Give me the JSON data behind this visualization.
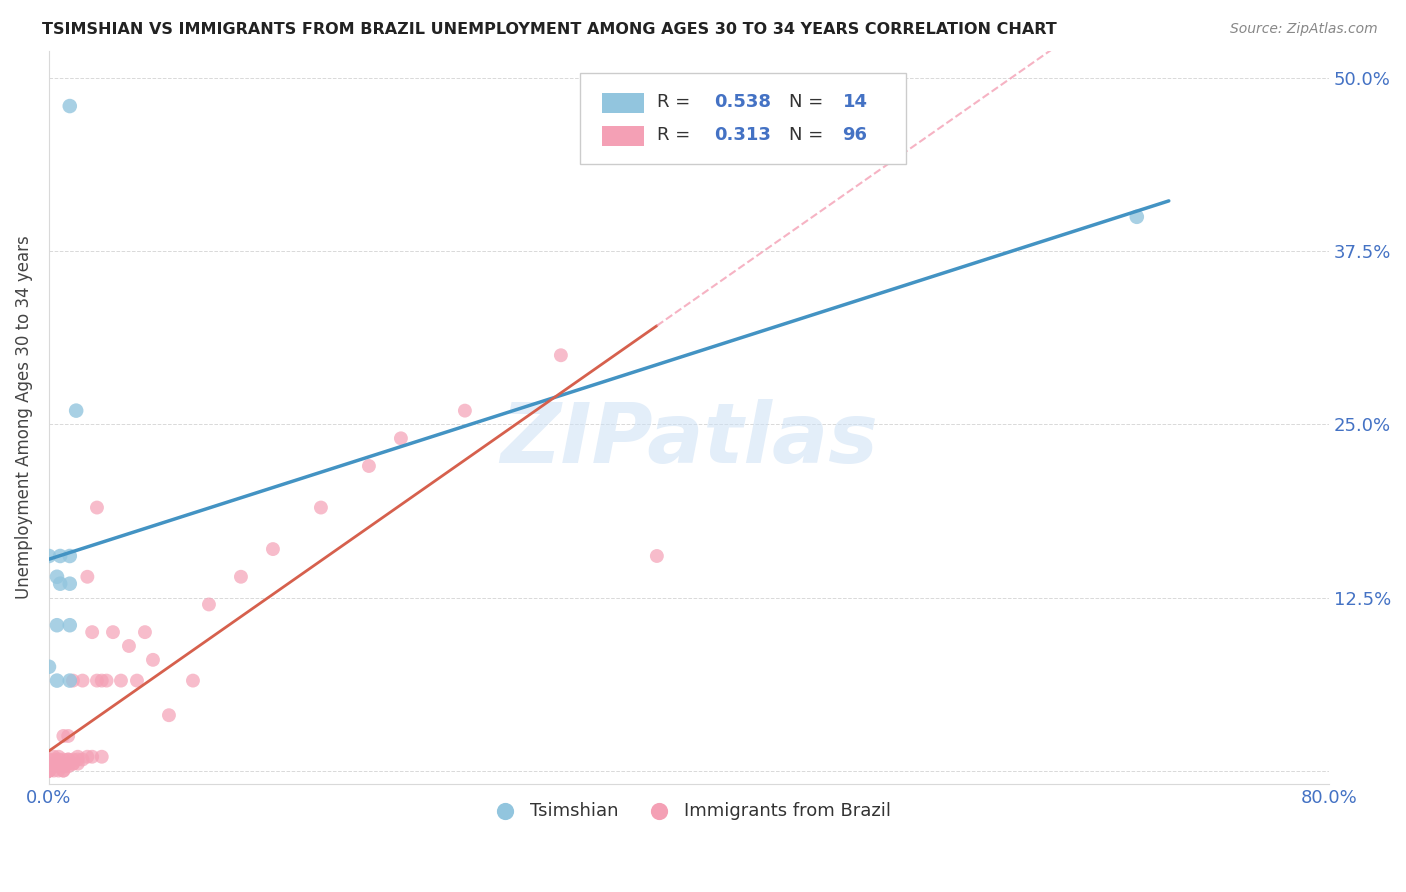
{
  "title": "TSIMSHIAN VS IMMIGRANTS FROM BRAZIL UNEMPLOYMENT AMONG AGES 30 TO 34 YEARS CORRELATION CHART",
  "source": "Source: ZipAtlas.com",
  "ylabel": "Unemployment Among Ages 30 to 34 years",
  "xlim": [
    0.0,
    0.8
  ],
  "ylim": [
    -0.01,
    0.52
  ],
  "xticks": [
    0.0,
    0.2,
    0.4,
    0.6,
    0.8
  ],
  "xticklabels": [
    "0.0%",
    "",
    "",
    "",
    "80.0%"
  ],
  "yticks_right": [
    0.125,
    0.25,
    0.375,
    0.5
  ],
  "yticklabels_right": [
    "12.5%",
    "25.0%",
    "37.5%",
    "50.0%"
  ],
  "watermark": "ZIPatlas",
  "blue_color": "#92c5de",
  "pink_color": "#f4a0b5",
  "blue_line_color": "#4393c3",
  "pink_line_color": "#d6604d",
  "pink_dash_color": "#f4a0b5",
  "axis_color": "#4472C4",
  "background_color": "#ffffff",
  "grid_color": "#d9d9d9",
  "tsimshian_x": [
    0.013,
    0.005,
    0.005,
    0.005,
    0.0,
    0.0,
    0.007,
    0.007,
    0.013,
    0.013,
    0.013,
    0.013,
    0.017,
    0.68
  ],
  "tsimshian_y": [
    0.48,
    0.065,
    0.105,
    0.14,
    0.155,
    0.075,
    0.155,
    0.135,
    0.155,
    0.135,
    0.105,
    0.065,
    0.26,
    0.4
  ],
  "brazil_x": [
    0.0,
    0.0,
    0.0,
    0.0,
    0.0,
    0.0,
    0.0,
    0.0,
    0.0,
    0.0,
    0.0,
    0.0,
    0.0,
    0.003,
    0.003,
    0.003,
    0.003,
    0.003,
    0.006,
    0.006,
    0.006,
    0.006,
    0.006,
    0.006,
    0.009,
    0.009,
    0.009,
    0.009,
    0.009,
    0.009,
    0.012,
    0.012,
    0.012,
    0.012,
    0.012,
    0.015,
    0.015,
    0.015,
    0.015,
    0.018,
    0.018,
    0.018,
    0.021,
    0.021,
    0.024,
    0.024,
    0.027,
    0.027,
    0.03,
    0.03,
    0.033,
    0.033,
    0.036,
    0.04,
    0.045,
    0.05,
    0.055,
    0.06,
    0.065,
    0.075,
    0.09,
    0.1,
    0.12,
    0.14,
    0.17,
    0.2,
    0.22,
    0.26,
    0.32,
    0.38
  ],
  "brazil_y": [
    0.0,
    0.0,
    0.0,
    0.0,
    0.0,
    0.0,
    0.0,
    0.003,
    0.003,
    0.003,
    0.005,
    0.005,
    0.008,
    0.0,
    0.003,
    0.005,
    0.008,
    0.01,
    0.0,
    0.003,
    0.005,
    0.005,
    0.008,
    0.01,
    0.0,
    0.0,
    0.003,
    0.005,
    0.008,
    0.025,
    0.003,
    0.005,
    0.008,
    0.008,
    0.025,
    0.005,
    0.005,
    0.008,
    0.065,
    0.005,
    0.008,
    0.01,
    0.008,
    0.065,
    0.01,
    0.14,
    0.01,
    0.1,
    0.065,
    0.19,
    0.01,
    0.065,
    0.065,
    0.1,
    0.065,
    0.09,
    0.065,
    0.1,
    0.08,
    0.04,
    0.065,
    0.12,
    0.14,
    0.16,
    0.19,
    0.22,
    0.24,
    0.26,
    0.3,
    0.155
  ]
}
